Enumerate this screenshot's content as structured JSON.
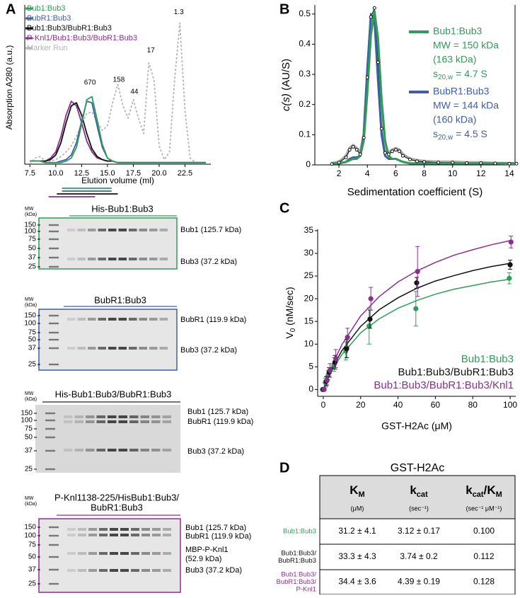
{
  "panel_labels": [
    "A",
    "B",
    "C",
    "D"
  ],
  "chart_data": [
    {
      "type": "line",
      "xlabel": "Elution volume (ml)",
      "ylabel": "Absorption A280 (a.u.)",
      "xlim": [
        7,
        25
      ],
      "ylim": [
        0,
        1
      ],
      "xticks": [
        7.5,
        {
          "value": 10,
          "label": "10.0"
        },
        12.5,
        {
          "value": 15,
          "label": "15.0"
        },
        17.5,
        {
          "value": 20,
          "label": "20.0"
        },
        22.5
      ],
      "x": [
        7.5,
        8,
        8.5,
        9,
        9.5,
        10,
        10.5,
        11,
        11.5,
        12,
        12.5,
        13,
        13.5,
        14,
        14.5,
        15,
        15.5,
        16,
        16.5,
        17,
        17.5,
        18,
        18.5,
        19,
        19.5,
        20,
        20.5,
        21,
        21.5,
        22,
        22.5,
        23,
        23.5,
        24,
        24.5
      ],
      "series": [
        {
          "name": "Bub1:Bub3",
          "color": "#2e9e57",
          "values": [
            0.02,
            0.02,
            0.02,
            0.01,
            0.01,
            0.01,
            0.01,
            0.02,
            0.04,
            0.11,
            0.26,
            0.42,
            0.44,
            0.29,
            0.13,
            0.04,
            0.02,
            0.01,
            0.01,
            0.01,
            0.01,
            0.01,
            0.01,
            0.01,
            0.01,
            0.01,
            0.01,
            0.01,
            0.01,
            0.01,
            0.01,
            0.01,
            0.01,
            0.01,
            0.01
          ]
        },
        {
          "name": "BubR1:Bub3",
          "color": "#3d5fa8",
          "values": [
            0.02,
            0.02,
            0.02,
            0.01,
            0.01,
            0.01,
            0.02,
            0.03,
            0.06,
            0.14,
            0.28,
            0.41,
            0.4,
            0.25,
            0.11,
            0.04,
            0.02,
            0.01,
            0.01,
            0.01,
            0.01,
            0.01,
            0.01,
            0.01,
            0.01,
            0.01,
            0.01,
            0.01,
            0.01,
            0.01,
            0.01,
            0.01,
            0.01,
            0.01,
            0.01
          ]
        },
        {
          "name": "Bub1:Bub3/BubR1:Bub3",
          "color": "#111111",
          "values": [
            0.02,
            0.02,
            0.02,
            0.02,
            0.03,
            0.06,
            0.14,
            0.27,
            0.38,
            0.4,
            0.32,
            0.2,
            0.1,
            0.05,
            0.03,
            0.02,
            0.02,
            0.01,
            0.01,
            0.01,
            0.01,
            0.01,
            0.01,
            0.01,
            0.01,
            0.01,
            0.01,
            0.01,
            0.01,
            0.01,
            0.01,
            0.01,
            0.01,
            0.01,
            0.01
          ]
        },
        {
          "name": "P-Knl1/Bub1:Bub3/BubR1:Bub3",
          "color": "#8b2f8c",
          "values": [
            0.02,
            0.02,
            0.02,
            0.02,
            0.04,
            0.08,
            0.18,
            0.32,
            0.41,
            0.38,
            0.27,
            0.15,
            0.08,
            0.04,
            0.03,
            0.02,
            0.02,
            0.01,
            0.01,
            0.01,
            0.01,
            0.01,
            0.01,
            0.01,
            0.01,
            0.01,
            0.01,
            0.01,
            0.01,
            0.01,
            0.01,
            0.01,
            0.01,
            0.01,
            0.01
          ]
        },
        {
          "name": "Marker Run",
          "color": "#b5b5b5",
          "linestyle": "dotted",
          "values": [
            0.0,
            0.04,
            0.05,
            0.02,
            0.02,
            0.03,
            0.05,
            0.08,
            0.12,
            0.18,
            0.26,
            0.33,
            0.34,
            0.28,
            0.22,
            0.25,
            0.4,
            0.52,
            0.38,
            0.3,
            0.42,
            0.3,
            0.2,
            0.66,
            0.55,
            0.12,
            0.03,
            0.08,
            0.55,
            0.92,
            0.35,
            0.04,
            0.01,
            0.01,
            0.01
          ]
        }
      ],
      "annotations": [
        {
          "text": "670",
          "x": 13.3,
          "y": 0.53
        },
        {
          "text": "158",
          "x": 16.1,
          "y": 0.55
        },
        {
          "text": "44",
          "x": 17.6,
          "y": 0.47
        },
        {
          "text": "17",
          "x": 19.2,
          "y": 0.74
        },
        {
          "text": "1.3",
          "x": 21.9,
          "y": 0.99
        }
      ],
      "fractions": [
        {
          "color": "#2e9e57",
          "range": [
            10.6,
            15.4
          ]
        },
        {
          "color": "#3d5fa8",
          "range": [
            10.6,
            15.4
          ]
        },
        {
          "color": "#111111",
          "range": [
            10.1,
            16.0
          ]
        },
        {
          "color": "#8b2f8c",
          "range": [
            9.3,
            13.8
          ]
        }
      ]
    },
    {
      "type": "line",
      "xlabel": "Sedimentation coefficient (S)",
      "ylabel": [
        "c(s)",
        " (AU/S)"
      ],
      "xlim": [
        0.3,
        14.4
      ],
      "ylim": [
        0,
        0.53
      ],
      "xticks": [
        2,
        4,
        6,
        8,
        10,
        12,
        14
      ],
      "yticks": [
        0,
        0.1,
        0.2,
        0.3,
        0.4,
        0.5
      ],
      "x": [
        1.5,
        2,
        2.5,
        2.75,
        3,
        3.25,
        3.5,
        3.75,
        4,
        4.25,
        4.5,
        4.75,
        5,
        5.25,
        5.5,
        5.75,
        6,
        6.25,
        6.5,
        7,
        7.5,
        8,
        9,
        10,
        11,
        12,
        13,
        14,
        14.5
      ],
      "series": [
        {
          "name": "Bub1:Bub3",
          "color": "#2e9e57",
          "notes": [
            "MW = 150 kDa",
            "(163 kDa)"
          ],
          "s_value": {
            "symbol": "s",
            "sub": "20,w",
            "text": "= 4.7 S"
          },
          "values": [
            0.005,
            0.005,
            0.01,
            0.015,
            0.02,
            0.02,
            0.03,
            0.08,
            0.24,
            0.43,
            0.51,
            0.42,
            0.22,
            0.08,
            0.03,
            0.02,
            0.02,
            0.015,
            0.01,
            0.005,
            0.005,
            0.005,
            0.005,
            0.005,
            0.005,
            0.005,
            0.005,
            0.005,
            0.005
          ]
        },
        {
          "name": "BubR1:Bub3",
          "color": "#3d5fa8",
          "notes": [
            "MW = 144 kDa",
            "(160 kDa)"
          ],
          "s_value": {
            "symbol": "s",
            "sub": "20,w",
            "text": "= 4.5 S"
          },
          "values": [
            0.005,
            0.005,
            0.01,
            0.02,
            0.025,
            0.025,
            0.03,
            0.1,
            0.32,
            0.5,
            0.48,
            0.28,
            0.1,
            0.03,
            0.02,
            0.02,
            0.02,
            0.015,
            0.01,
            0.005,
            0.005,
            0.005,
            0.005,
            0.005,
            0.005,
            0.005,
            0.005,
            0.005,
            0.005
          ]
        },
        {
          "color": "#111111",
          "marker": "circle",
          "values": [
            0.003,
            0.008,
            0.025,
            0.05,
            0.06,
            0.05,
            0.035,
            0.09,
            0.29,
            0.49,
            0.52,
            0.34,
            0.12,
            0.04,
            0.035,
            0.045,
            0.05,
            0.045,
            0.03,
            0.018,
            0.012,
            0.01,
            0.008,
            0.008,
            0.006,
            0.006,
            0.005,
            0.004,
            0.004
          ]
        },
        {
          "color": "#aaaaaa",
          "linewidth": 4,
          "values": [
            0.005,
            0.01,
            0.03,
            0.055,
            0.065,
            0.055,
            0.04,
            0.1,
            0.3,
            0.48,
            0.5,
            0.33,
            0.13,
            0.05,
            0.04,
            0.05,
            0.055,
            0.05,
            0.035,
            0.02,
            0.015,
            0.012,
            0.01,
            0.01,
            0.008,
            0.008,
            0.006,
            0.005,
            0.005
          ]
        }
      ]
    },
    {
      "type": "scatter",
      "xlabel": "GST-H2Ac (μM)",
      "ylabel": [
        "V",
        "0",
        " (nM/sec)"
      ],
      "xlim": [
        -3,
        103
      ],
      "ylim": [
        -1.5,
        35.3
      ],
      "xticks": [
        0,
        20,
        40,
        60,
        80,
        100
      ],
      "yticks": [
        0,
        5,
        10,
        15,
        20,
        25,
        30,
        35
      ],
      "x": [
        0,
        1.56,
        3.125,
        6.25,
        12.5,
        25,
        50,
        100
      ],
      "fit_x": [
        0,
        5,
        10,
        20,
        30,
        40,
        50,
        60,
        70,
        80,
        90,
        100
      ],
      "series": [
        {
          "name": "Bub1:Bub3",
          "color": "#2e9e57",
          "values": [
            0,
            1.5,
            3.2,
            5.5,
            8.5,
            14,
            17.8,
            24.5
          ],
          "errors": [
            0,
            1,
            1,
            1.5,
            2,
            4,
            3.8,
            1.2
          ],
          "fit": [
            0,
            4.4,
            7.7,
            12.5,
            15.6,
            17.9,
            19.6,
            21.0,
            22.1,
            22.9,
            23.7,
            24.3
          ]
        },
        {
          "name": "Bub1:Bub3/BubR1:Bub3",
          "color": "#111111",
          "values": [
            0,
            1.8,
            3.8,
            6,
            9,
            15.5,
            23.5,
            27.5
          ],
          "errors": [
            0,
            1,
            1,
            1.5,
            2,
            2,
            1.2,
            1
          ],
          "fit": [
            0,
            4.8,
            8.6,
            13.9,
            17.6,
            20.2,
            22.3,
            23.9,
            25.1,
            26.2,
            27.1,
            27.8
          ]
        },
        {
          "name": "Bub1:Bub3/BubR1:Bub3/Knl1",
          "color": "#8b2f8c",
          "values": [
            0,
            2,
            4.2,
            6.8,
            11.5,
            20,
            26,
            32.5
          ],
          "errors": [
            0,
            1,
            1.5,
            2,
            2,
            2.5,
            5.5,
            1.3
          ],
          "fit": [
            0,
            5.6,
            9.9,
            16.2,
            20.5,
            23.7,
            26.1,
            28.0,
            29.6,
            30.8,
            31.9,
            32.8
          ]
        }
      ]
    }
  ],
  "gels": [
    {
      "title": [
        "His-Bub1:Bub3"
      ],
      "color": "#2e9e57",
      "framed": true,
      "mw_label": [
        "MW",
        "(kDa)"
      ],
      "mw": [
        150,
        100,
        75,
        50,
        37,
        25
      ],
      "bands": [
        "Bub1 (125.7 kDa)",
        "Bub3 (37.2 kDa)"
      ]
    },
    {
      "title": [
        "BubR1:Bub3"
      ],
      "color": "#3d5fa8",
      "framed": true,
      "mw_label": [
        "MW",
        "(kDa)"
      ],
      "mw": [
        150,
        100,
        75,
        50,
        37,
        25
      ],
      "bands": [
        "BubR1 (119.9 kDa)",
        "Bub3 (37.2 kDa)"
      ]
    },
    {
      "title": [
        "His-Bub1:Bub3/BubR1:Bub3"
      ],
      "color": "#222222",
      "framed": false,
      "mw_label": [
        "MW",
        "(kDa)"
      ],
      "mw": [
        150,
        100,
        75,
        50,
        37,
        25
      ],
      "bands": [
        "Bub1 (125.7 kDa)",
        "BubR1 (119.9 kDa)",
        "Bub3 (37.2 kDa)"
      ]
    },
    {
      "title": [
        "P-Knl1138-225/HisBub1:Bub3/",
        "BubR1:Bub3"
      ],
      "color": "#8b2f8c",
      "framed": true,
      "mw_label": [
        "MW",
        "(kDa)"
      ],
      "mw": [
        150,
        100,
        75,
        50,
        37,
        25
      ],
      "bands": [
        "Bub1 (125.7 kDa)",
        "BubR1 (119.9 kDa)",
        "MBP-P-Knl1",
        "(52.9 kDa)",
        "Bub3 (37.2 kDa)"
      ]
    }
  ],
  "table": {
    "title": "GST-H2Ac",
    "columns": [
      {
        "parts": [
          [
            "K",
            "b"
          ],
          [
            "M",
            "sub"
          ]
        ],
        "unit": "(μM)"
      },
      {
        "parts": [
          [
            "k",
            "b"
          ],
          [
            "cat",
            "sub"
          ]
        ],
        "unit": "(sec⁻¹)"
      },
      {
        "parts": [
          [
            "k",
            "b"
          ],
          [
            "cat",
            "sub"
          ],
          [
            "/K",
            "b"
          ],
          [
            "M",
            "sub"
          ]
        ],
        "unit": "(sec⁻¹ μM⁻¹)"
      }
    ],
    "rows": [
      {
        "label": [
          "Bub1:Bub3"
        ],
        "color": "#2e9e57",
        "cells": [
          "31.2 ± 4.1",
          "3.12 ± 0.17",
          "0.100"
        ]
      },
      {
        "label": [
          "Bub1:Bub3/",
          "BubR1:Bub3"
        ],
        "color": "#111111",
        "cells": [
          "33.3 ± 4.3",
          "3.74 ± 0.2",
          "0.112"
        ]
      },
      {
        "label": [
          "Bub1:Bub3/",
          "BubR1:Bub3/",
          "P-Knl1"
        ],
        "color": "#8b2f8c",
        "cells": [
          "34.4 ± 3.6",
          "4.39 ± 0.19",
          "0.128"
        ]
      }
    ]
  }
}
